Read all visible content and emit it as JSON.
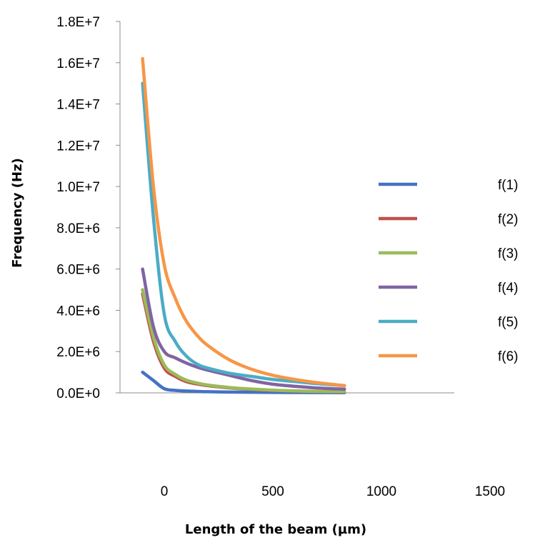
{
  "chart_data": {
    "type": "line",
    "title": "",
    "xlabel": "Length of the beam (µm)",
    "ylabel": "Frequency (Hz)",
    "xlim": [
      -200,
      1500
    ],
    "ylim": [
      0,
      18000000
    ],
    "x_ticks": [
      0,
      500,
      1000,
      1500
    ],
    "x_tick_labels": [
      "0",
      "500",
      "1000",
      "1500"
    ],
    "y_ticks": [
      0,
      2000000,
      4000000,
      6000000,
      8000000,
      10000000,
      12000000,
      14000000,
      16000000,
      18000000
    ],
    "y_tick_labels": [
      "0.0E+0",
      "2.0E+6",
      "4.0E+6",
      "6.0E+6",
      "8.0E+6",
      "1.0E+7",
      "1.2E+7",
      "1.4E+7",
      "1.6E+7",
      "1.8E+7"
    ],
    "grid": false,
    "legend": "right",
    "x": [
      -100,
      -50,
      0,
      50,
      100,
      150,
      200,
      300,
      400,
      500,
      600,
      700,
      830
    ],
    "series": [
      {
        "name": "f(1)",
        "color": "#4472C4",
        "values": [
          1000000,
          600000,
          200000,
          120000,
          90000,
          70000,
          55000,
          40000,
          30000,
          22000,
          17000,
          13000,
          10000
        ]
      },
      {
        "name": "f(2)",
        "color": "#C0504D",
        "values": [
          4800000,
          2500000,
          1200000,
          800000,
          550000,
          430000,
          350000,
          240000,
          170000,
          120000,
          90000,
          65000,
          50000
        ]
      },
      {
        "name": "f(3)",
        "color": "#9BBB59",
        "values": [
          5000000,
          2700000,
          1350000,
          900000,
          620000,
          480000,
          380000,
          260000,
          185000,
          130000,
          95000,
          70000,
          55000
        ]
      },
      {
        "name": "f(4)",
        "color": "#8064A2",
        "values": [
          6000000,
          3200000,
          2000000,
          1700000,
          1450000,
          1250000,
          1100000,
          850000,
          600000,
          420000,
          320000,
          240000,
          180000
        ]
      },
      {
        "name": "f(5)",
        "color": "#4BACC6",
        "values": [
          15000000,
          8500000,
          3800000,
          2500000,
          1800000,
          1400000,
          1200000,
          950000,
          800000,
          650000,
          550000,
          450000,
          350000
        ]
      },
      {
        "name": "f(6)",
        "color": "#F79646",
        "values": [
          16200000,
          10000000,
          6200000,
          4600000,
          3500000,
          2800000,
          2300000,
          1600000,
          1150000,
          850000,
          650000,
          500000,
          350000
        ]
      }
    ]
  }
}
